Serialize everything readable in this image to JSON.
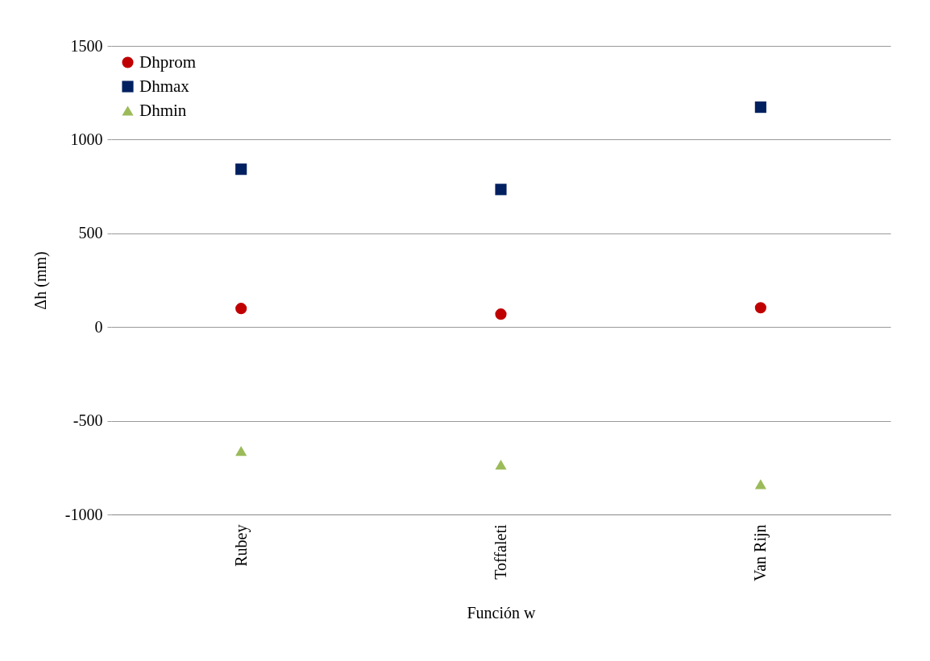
{
  "chart_data": {
    "type": "scatter",
    "xlabel": "Función w",
    "ylabel": "Δh (mm)",
    "categories": [
      "Rubey",
      "Toffaleti",
      "Van Rijn"
    ],
    "series": [
      {
        "name": "Dhprom",
        "color": "#c00000",
        "marker": "circle",
        "values": [
          99,
          69,
          103
        ]
      },
      {
        "name": "Dhmax",
        "color": "#002060",
        "marker": "square",
        "values": [
          842,
          734,
          1173
        ]
      },
      {
        "name": "Dhmin",
        "color": "#9bbb59",
        "marker": "triangle",
        "values": [
          -661,
          -734,
          -838
        ]
      }
    ],
    "ylim": [
      -1000,
      1500
    ],
    "yticks": [
      -1000,
      -500,
      0,
      500,
      1000,
      1500
    ],
    "grid": "y",
    "legend": "top left"
  }
}
